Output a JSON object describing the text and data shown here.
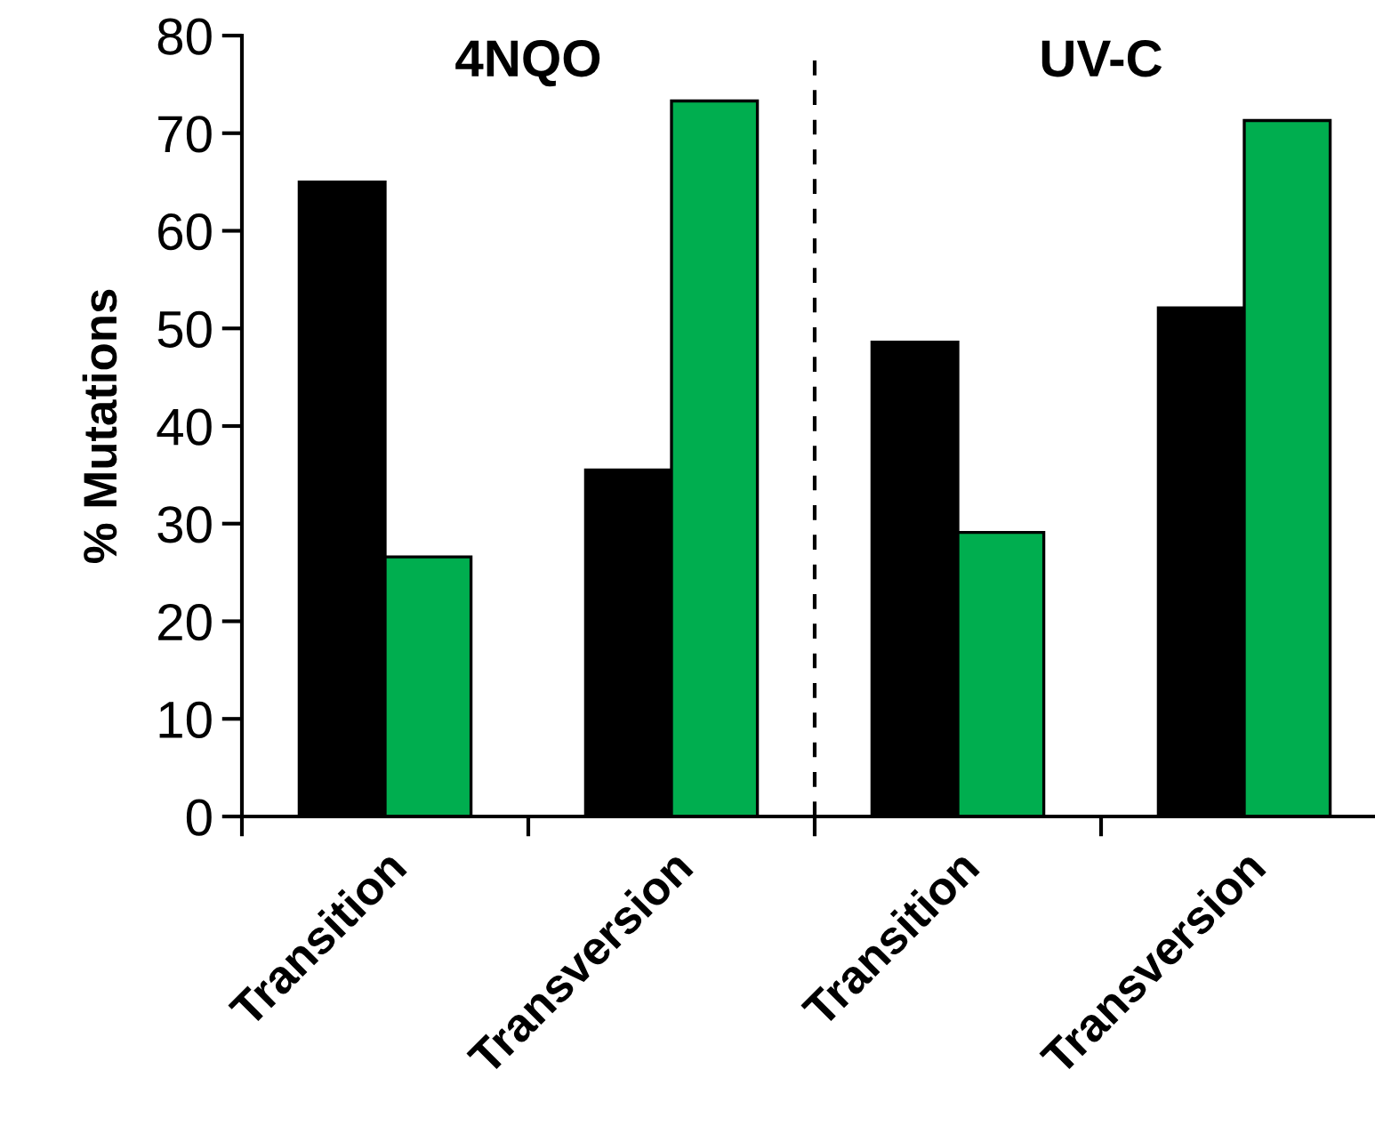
{
  "chart_data": {
    "type": "bar",
    "ylabel": "% Mutations",
    "categories": [
      "Transition",
      "Transversion",
      "Transition",
      "Transversion"
    ],
    "series": [
      {
        "color": "#000000",
        "values": [
          65,
          35.5,
          48.6,
          52.1
        ]
      },
      {
        "color": "#00ae4f",
        "values": [
          26.6,
          73.3,
          29.1,
          71.3
        ]
      }
    ],
    "ylim": [
      0,
      80
    ],
    "yticks": [
      0,
      10,
      20,
      30,
      40,
      50,
      60,
      70,
      80
    ],
    "annotations": [
      "4NQO",
      "UV-C"
    ],
    "grid": false,
    "legend": false
  }
}
